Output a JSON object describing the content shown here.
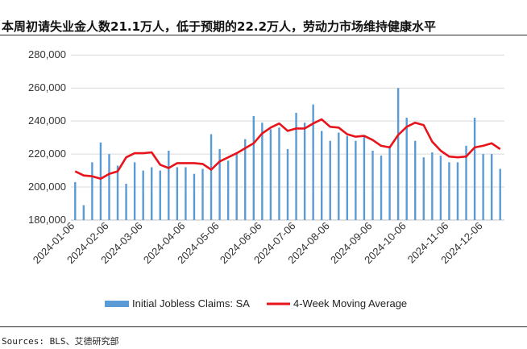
{
  "title": "本周初请失业金人数21.1万人，低于预期的22.2万人，劳动力市场维持健康水平",
  "source": "Sources: BLS、艾德研究部",
  "chart_data": {
    "type": "bar",
    "y_tick_labels": [
      "180,000",
      "200,000",
      "220,000",
      "240,000",
      "260,000",
      "280,000"
    ],
    "ylim": [
      180000,
      285000
    ],
    "x_tick_labels": [
      "2024-01-06",
      "2024-02-06",
      "2024-03-06",
      "2024-04-06",
      "2024-05-06",
      "2024-06-06",
      "2024-07-06",
      "2024-08-06",
      "2024-09-06",
      "2024-10-06",
      "2024-11-06",
      "2024-12-06"
    ],
    "x_tick_week_index": [
      0,
      4,
      8,
      13,
      17,
      22,
      26,
      30,
      35,
      39,
      44,
      48
    ],
    "grid": true,
    "legend_position": "bottom",
    "series": [
      {
        "name": "Initial Jobless Claims: SA",
        "type": "bar",
        "color": "#5b9bd5",
        "values": [
          203000,
          189000,
          215000,
          227000,
          220000,
          213000,
          202000,
          215000,
          210000,
          212000,
          210000,
          222000,
          212000,
          212000,
          208000,
          211000,
          232000,
          223000,
          216000,
          221000,
          229000,
          243000,
          239000,
          235000,
          236000,
          223000,
          245000,
          239000,
          250000,
          234000,
          228000,
          233000,
          231000,
          228000,
          231000,
          222000,
          219000,
          225000,
          260000,
          242000,
          228000,
          218000,
          221000,
          219000,
          215000,
          215000,
          225000,
          242000,
          220000,
          220000,
          211000
        ]
      },
      {
        "name": "4-Week Moving Average",
        "type": "line",
        "color": "#e8141c",
        "values": [
          209500,
          207000,
          206500,
          205000,
          208000,
          209500,
          218000,
          220500,
          220500,
          221000,
          213500,
          211500,
          214500,
          214500,
          214500,
          214000,
          210500,
          215500,
          218000,
          220500,
          223500,
          226500,
          232500,
          236000,
          238500,
          234000,
          235500,
          235500,
          238500,
          241000,
          236500,
          236000,
          232000,
          230500,
          231000,
          228500,
          225000,
          224000,
          231500,
          236500,
          239000,
          237500,
          227500,
          222000,
          218500,
          218000,
          218500,
          224000,
          225000,
          226500,
          223000
        ]
      }
    ]
  }
}
